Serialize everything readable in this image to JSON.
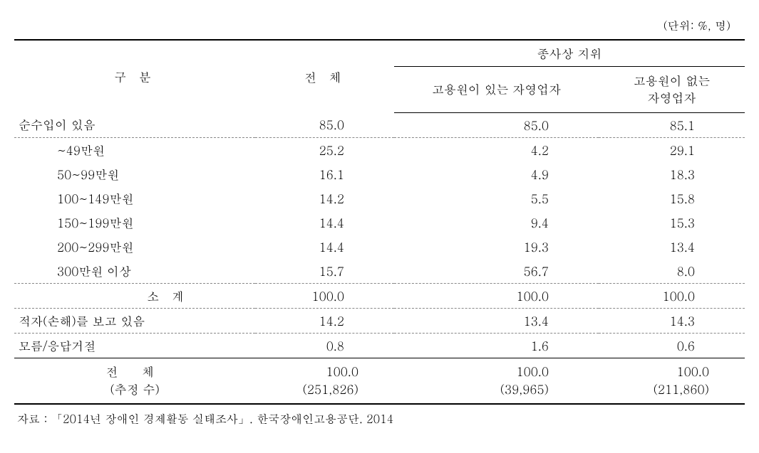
{
  "unit_label": "(단위: %, 명)",
  "headers": {
    "category": "구 분",
    "total": "전 체",
    "group": "종사상 지위",
    "sub1": "고용원이 있는   자영업자",
    "sub2_line1": "고용원이 없는",
    "sub2_line2": "자영업자"
  },
  "rows": {
    "has_income": {
      "label": "순수입이 있음",
      "total": "85.0",
      "c1": "85.0",
      "c2": "85.1"
    },
    "r1": {
      "label": "~49만원",
      "total": "25.2",
      "c1": "4.2",
      "c2": "29.1"
    },
    "r2": {
      "label": "50~99만원",
      "total": "16.1",
      "c1": "4.9",
      "c2": "18.3"
    },
    "r3": {
      "label": "100~149만원",
      "total": "14.2",
      "c1": "5.5",
      "c2": "15.8"
    },
    "r4": {
      "label": "150~199만원",
      "total": "14.4",
      "c1": "9.4",
      "c2": "15.3"
    },
    "r5": {
      "label": "200~299만원",
      "total": "14.4",
      "c1": "19.3",
      "c2": "13.4"
    },
    "r6": {
      "label": "300만원 이상",
      "total": "15.7",
      "c1": "56.7",
      "c2": "8.0"
    },
    "subtotal": {
      "label": "소 계",
      "total": "100.0",
      "c1": "100.0",
      "c2": "100.0"
    },
    "deficit": {
      "label": "적자(손해)를 보고 있음",
      "total": "14.2",
      "c1": "13.4",
      "c2": "14.3"
    },
    "dk": {
      "label": "모름/응답거절",
      "total": "0.8",
      "c1": "1.6",
      "c2": "0.6"
    },
    "grand": {
      "label_line1": "전 체",
      "label_line2": "(추정 수)",
      "total_line1": "100.0",
      "total_line2": "(251,826)",
      "c1_line1": "100.0",
      "c1_line2": "(39,965)",
      "c2_line1": "100.0",
      "c2_line2": "(211,860)"
    }
  },
  "source": "자료 :  「2014년 장애인 경제활동 실태조사」. 한국장애인고용공단. 2014"
}
